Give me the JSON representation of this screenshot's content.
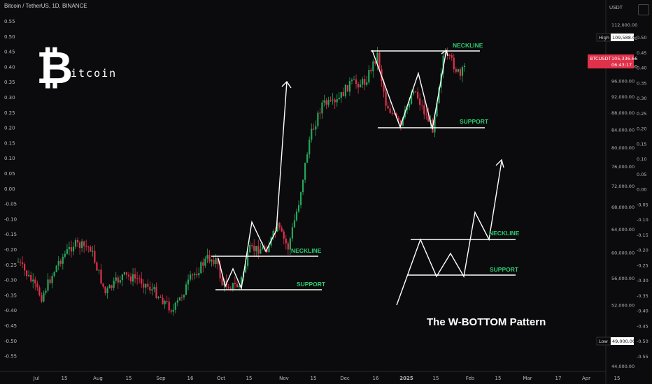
{
  "header": {
    "symbol_line": "Bitcoin / TetherUS, 1D, BINANCE"
  },
  "currency_label": "USDT",
  "logo": {
    "glyph": "₿",
    "text": "itcoin"
  },
  "chart_data": {
    "type": "candlestick",
    "title": "The W-BOTTOM Pattern",
    "x_ticks": [
      "Jul",
      "15",
      "Aug",
      "15",
      "Sep",
      "16",
      "Oct",
      "15",
      "Nov",
      "15",
      "Dec",
      "16",
      "2025",
      "15",
      "Feb",
      "15",
      "Mar",
      "17",
      "Apr",
      "15"
    ],
    "left_axis": {
      "ticks": [
        "0.55",
        "0.50",
        "0.45",
        "0.40",
        "0.35",
        "0.30",
        "0.25",
        "0.20",
        "0.15",
        "0.10",
        "0.05",
        "0.00",
        "-0.05",
        "-0.10",
        "-0.15",
        "-0.20",
        "-0.25",
        "-0.30",
        "-0.35",
        "-0.40",
        "-0.45",
        "-0.50",
        "-0.55"
      ]
    },
    "right_axis": {
      "ticks": [
        "112,000.00",
        "108,000.00",
        "100,000.00",
        "96,000.00",
        "92,000.00",
        "88,000.00",
        "84,000.00",
        "80,000.00",
        "76,000.00",
        "72,000.00",
        "68,000.00",
        "64,000.00",
        "60,000.00",
        "56,000.00",
        "52,000.00",
        "44,000.00"
      ],
      "ylim_log": [
        44000,
        112000
      ]
    },
    "right_axis_left_values": [
      "0.50",
      "0.45",
      "0.40",
      "0.35",
      "0.30",
      "0.25",
      "0.20",
      "0.15",
      "0.10",
      "0.05",
      "0.00",
      "-0.05",
      "-0.10",
      "-0.15",
      "-0.20",
      "-0.25",
      "-0.30",
      "-0.35",
      "-0.40",
      "-0.45",
      "-0.50",
      "-0.55"
    ],
    "high": {
      "label": "High",
      "value": "109,588.00"
    },
    "low": {
      "label": "Low",
      "value": "49,000.00"
    },
    "last": {
      "symbol": "BTCUSDT",
      "value": "105,336.66",
      "countdown": "06:43:17"
    },
    "annotations": {
      "neckline_1": "NECKLINE",
      "support_1": "SUPPORT",
      "neckline_2": "NECKLINE",
      "support_2": "SUPPORT",
      "neckline_3": "NECKLINE",
      "support_3": "SUPPORT"
    },
    "colors": {
      "up": "#26a65b",
      "down": "#e0314b",
      "label_green": "#2ecc71",
      "lines": "#ffffff",
      "last_price": "#e0314b"
    }
  }
}
